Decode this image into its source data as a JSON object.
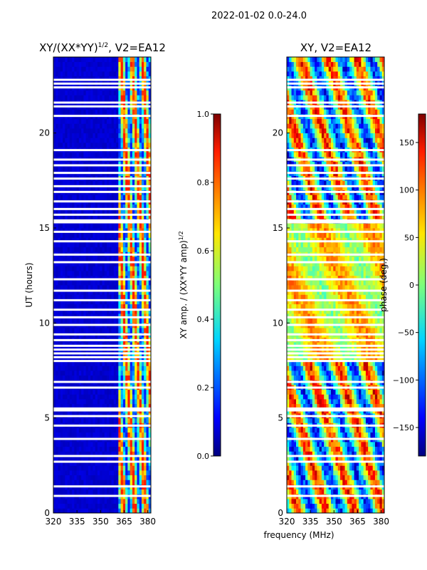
{
  "suptitle": "2022-01-02 0.0-24.0",
  "shared_xlabel": "frequency (MHz)",
  "chart_data": [
    {
      "type": "heatmap",
      "title_main": "XY/(XX*YY)",
      "title_exp": "1/2",
      "title_suffix": ", V2=EA12",
      "xlabel": "",
      "ylabel": "UT (hours)",
      "xlim": [
        320,
        382
      ],
      "ylim": [
        0,
        24
      ],
      "x_ticks": [
        320,
        335,
        350,
        365,
        380
      ],
      "y_ticks": [
        0,
        5,
        10,
        15,
        20
      ],
      "colorbar": {
        "label_main": "XY amp. / (XX*YY amp)",
        "label_exp": "1/2",
        "range": [
          0.0,
          1.0
        ],
        "ticks": [
          "0.0",
          "0.2",
          "0.4",
          "0.6",
          "0.8",
          "1.0"
        ],
        "tick_values": [
          0.0,
          0.2,
          0.4,
          0.6,
          0.8,
          1.0
        ]
      },
      "colormap": "jet",
      "description_note_omitted": false
    },
    {
      "type": "heatmap",
      "title": "XY, V2=EA12",
      "xlabel": "",
      "ylabel": "",
      "xlim": [
        320,
        382
      ],
      "ylim": [
        0,
        24
      ],
      "x_ticks": [
        320,
        335,
        350,
        365,
        380
      ],
      "y_ticks": [
        0,
        5,
        10,
        15,
        20
      ],
      "colorbar": {
        "label": "phase (deg.)",
        "range": [
          -180,
          180
        ],
        "ticks": [
          "−150",
          "−100",
          "−50",
          "0",
          "50",
          "100",
          "150"
        ],
        "tick_values": [
          -150,
          -100,
          -50,
          0,
          50,
          100,
          150
        ]
      },
      "colormap": "jet"
    }
  ]
}
